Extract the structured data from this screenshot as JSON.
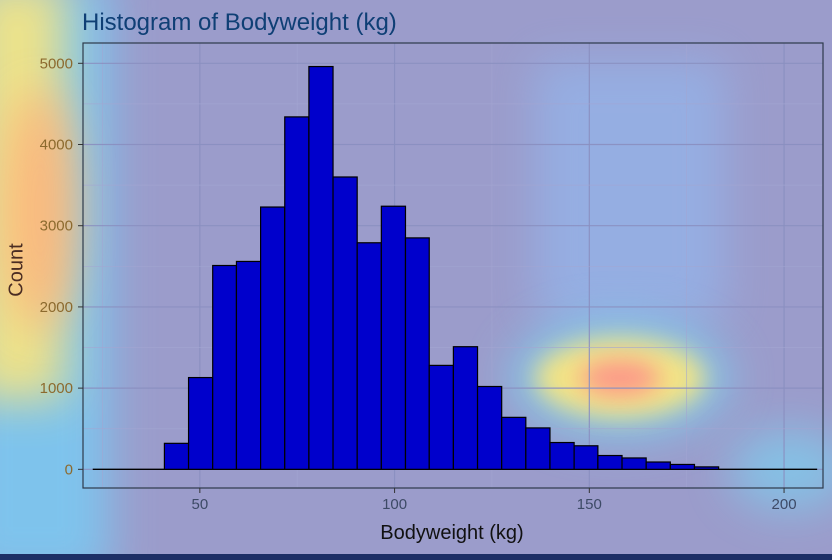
{
  "chart_data": {
    "type": "bar",
    "title": "Histogram of Bodyweight (kg)",
    "xlabel": "Bodyweight (kg)",
    "ylabel": "Count",
    "xlim": [
      20,
      210
    ],
    "ylim": [
      -230,
      5250
    ],
    "x_ticks": [
      50,
      100,
      150,
      200
    ],
    "y_ticks": [
      0,
      1000,
      2000,
      3000,
      4000,
      5000
    ],
    "grid": true,
    "bar_color": "#0000cc",
    "bar_edge_color": "#000000",
    "bins": [
      {
        "x0": 40.9,
        "x1": 47.1,
        "count": 320
      },
      {
        "x0": 47.1,
        "x1": 53.3,
        "count": 1130
      },
      {
        "x0": 53.3,
        "x1": 59.4,
        "count": 2510
      },
      {
        "x0": 59.4,
        "x1": 65.6,
        "count": 2560
      },
      {
        "x0": 65.6,
        "x1": 71.8,
        "count": 3230
      },
      {
        "x0": 71.8,
        "x1": 78.0,
        "count": 4340
      },
      {
        "x0": 78.0,
        "x1": 84.2,
        "count": 4960
      },
      {
        "x0": 84.2,
        "x1": 90.4,
        "count": 3600
      },
      {
        "x0": 90.4,
        "x1": 96.6,
        "count": 2790
      },
      {
        "x0": 96.6,
        "x1": 102.8,
        "count": 3240
      },
      {
        "x0": 102.8,
        "x1": 108.9,
        "count": 2850
      },
      {
        "x0": 108.9,
        "x1": 115.1,
        "count": 1280
      },
      {
        "x0": 115.1,
        "x1": 121.3,
        "count": 1510
      },
      {
        "x0": 121.3,
        "x1": 127.5,
        "count": 1020
      },
      {
        "x0": 127.5,
        "x1": 133.7,
        "count": 640
      },
      {
        "x0": 133.7,
        "x1": 139.9,
        "count": 510
      },
      {
        "x0": 139.9,
        "x1": 146.1,
        "count": 330
      },
      {
        "x0": 146.1,
        "x1": 152.2,
        "count": 290
      },
      {
        "x0": 152.2,
        "x1": 158.4,
        "count": 170
      },
      {
        "x0": 158.4,
        "x1": 164.6,
        "count": 140
      },
      {
        "x0": 164.6,
        "x1": 170.8,
        "count": 90
      },
      {
        "x0": 170.8,
        "x1": 177.0,
        "count": 60
      },
      {
        "x0": 177.0,
        "x1": 183.2,
        "count": 30
      }
    ],
    "baseline_range": [
      22.5,
      208.5
    ]
  }
}
